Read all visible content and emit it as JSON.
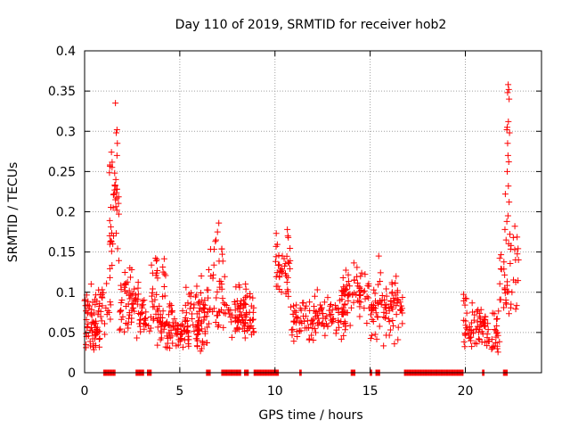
{
  "chart_data": {
    "type": "scatter",
    "title": "Day 110 of 2019, SRMTID for receiver hob2",
    "xlabel": "GPS time / hours",
    "ylabel": "SRMTID / TECUs",
    "xlim": [
      0,
      24
    ],
    "ylim": [
      0,
      0.4
    ],
    "x_ticks": [
      0,
      5,
      10,
      15,
      20
    ],
    "x_tick_labels": [
      "0",
      "5",
      "10",
      "15",
      "20"
    ],
    "y_ticks": [
      0,
      0.05,
      0.1,
      0.15,
      0.2,
      0.25,
      0.3,
      0.35,
      0.4
    ],
    "y_tick_labels": [
      "0",
      "0.05",
      "0.1",
      "0.15",
      "0.2",
      "0.25",
      "0.3",
      "0.35",
      "0.4"
    ],
    "grid": true,
    "marker": "+",
    "series": [
      {
        "name": "SRMTID",
        "color": "#ff0000",
        "clusters": [
          {
            "x_range": [
              0.0,
              0.8
            ],
            "y_range": [
              0.02,
              0.12
            ],
            "count": 70
          },
          {
            "x_range": [
              0.8,
              1.4
            ],
            "y_range": [
              0.04,
              0.13
            ],
            "count": 20
          },
          {
            "x_range": [
              1.3,
              1.8
            ],
            "y_range": [
              0.1,
              0.3
            ],
            "count": 35
          },
          {
            "x_range": [
              1.8,
              2.9
            ],
            "y_range": [
              0.04,
              0.14
            ],
            "count": 60
          },
          {
            "x_range": [
              2.9,
              3.6
            ],
            "y_range": [
              0.04,
              0.1
            ],
            "count": 25
          },
          {
            "x_range": [
              3.5,
              4.3
            ],
            "y_range": [
              0.05,
              0.15
            ],
            "count": 35
          },
          {
            "x_range": [
              3.8,
              6.5
            ],
            "y_range": [
              0.02,
              0.09
            ],
            "count": 120
          },
          {
            "x_range": [
              5.3,
              7.5
            ],
            "y_range": [
              0.04,
              0.13
            ],
            "count": 70
          },
          {
            "x_range": [
              6.5,
              7.3
            ],
            "y_range": [
              0.1,
              0.19
            ],
            "count": 12
          },
          {
            "x_range": [
              7.5,
              8.7
            ],
            "y_range": [
              0.04,
              0.12
            ],
            "count": 45
          },
          {
            "x_range": [
              8.0,
              8.9
            ],
            "y_range": [
              0.04,
              0.1
            ],
            "count": 40
          },
          {
            "x_range": [
              10.0,
              10.8
            ],
            "y_range": [
              0.06,
              0.18
            ],
            "count": 40
          },
          {
            "x_range": [
              10.8,
              12.2
            ],
            "y_range": [
              0.03,
              0.1
            ],
            "count": 60
          },
          {
            "x_range": [
              12.2,
              14.0
            ],
            "y_range": [
              0.04,
              0.11
            ],
            "count": 70
          },
          {
            "x_range": [
              13.5,
              15.0
            ],
            "y_range": [
              0.06,
              0.14
            ],
            "count": 60
          },
          {
            "x_range": [
              15.0,
              16.7
            ],
            "y_range": [
              0.03,
              0.13
            ],
            "count": 90
          },
          {
            "x_range": [
              19.9,
              21.0
            ],
            "y_range": [
              0.02,
              0.1
            ],
            "count": 60
          },
          {
            "x_range": [
              21.0,
              21.8
            ],
            "y_range": [
              0.02,
              0.08
            ],
            "count": 35
          },
          {
            "x_range": [
              21.8,
              22.8
            ],
            "y_range": [
              0.06,
              0.18
            ],
            "count": 40
          }
        ],
        "spikes": [
          {
            "x": 1.62,
            "y": 0.335
          },
          {
            "x": 1.7,
            "y": 0.302
          },
          {
            "x": 1.66,
            "y": 0.298
          },
          {
            "x": 1.72,
            "y": 0.285
          },
          {
            "x": 1.7,
            "y": 0.27
          },
          {
            "x": 1.58,
            "y": 0.248
          },
          {
            "x": 1.64,
            "y": 0.24
          },
          {
            "x": 1.6,
            "y": 0.232
          },
          {
            "x": 1.68,
            "y": 0.228
          },
          {
            "x": 1.55,
            "y": 0.222
          },
          {
            "x": 1.62,
            "y": 0.215
          },
          {
            "x": 1.5,
            "y": 0.205
          },
          {
            "x": 1.52,
            "y": 0.17
          },
          {
            "x": 1.48,
            "y": 0.16
          },
          {
            "x": 7.05,
            "y": 0.186
          },
          {
            "x": 6.98,
            "y": 0.175
          },
          {
            "x": 6.9,
            "y": 0.165
          },
          {
            "x": 10.65,
            "y": 0.178
          },
          {
            "x": 10.7,
            "y": 0.168
          },
          {
            "x": 15.45,
            "y": 0.145
          },
          {
            "x": 22.25,
            "y": 0.358
          },
          {
            "x": 22.28,
            "y": 0.352
          },
          {
            "x": 22.22,
            "y": 0.348
          },
          {
            "x": 22.3,
            "y": 0.34
          },
          {
            "x": 22.26,
            "y": 0.312
          },
          {
            "x": 22.2,
            "y": 0.305
          },
          {
            "x": 22.18,
            "y": 0.302
          },
          {
            "x": 22.32,
            "y": 0.298
          },
          {
            "x": 22.22,
            "y": 0.285
          },
          {
            "x": 22.24,
            "y": 0.27
          },
          {
            "x": 22.28,
            "y": 0.262
          },
          {
            "x": 22.2,
            "y": 0.25
          },
          {
            "x": 22.26,
            "y": 0.232
          },
          {
            "x": 22.1,
            "y": 0.222
          },
          {
            "x": 22.3,
            "y": 0.212
          },
          {
            "x": 22.24,
            "y": 0.195
          },
          {
            "x": 22.18,
            "y": 0.188
          },
          {
            "x": 22.08,
            "y": 0.178
          },
          {
            "x": 22.34,
            "y": 0.172
          },
          {
            "x": 22.14,
            "y": 0.165
          },
          {
            "x": 22.4,
            "y": 0.158
          },
          {
            "x": 22.6,
            "y": 0.182
          },
          {
            "x": 22.52,
            "y": 0.168
          }
        ],
        "zero_ranges": [
          [
            1.0,
            1.6
          ],
          [
            2.7,
            3.1
          ],
          [
            3.3,
            3.5
          ],
          [
            6.4,
            6.6
          ],
          [
            7.2,
            8.2
          ],
          [
            8.4,
            8.6
          ],
          [
            8.9,
            10.2
          ],
          [
            11.3,
            11.4
          ],
          [
            14.0,
            14.2
          ],
          [
            15.0,
            15.1
          ],
          [
            15.3,
            15.5
          ],
          [
            16.8,
            19.9
          ],
          [
            20.9,
            21.0
          ],
          [
            22.0,
            22.2
          ]
        ]
      }
    ]
  }
}
